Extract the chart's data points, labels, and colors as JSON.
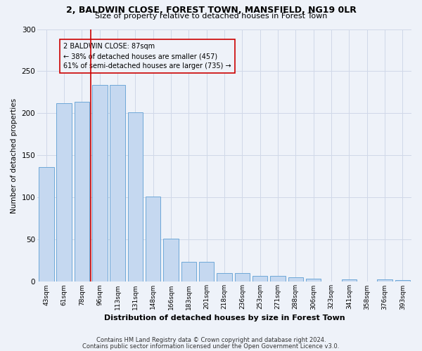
{
  "title1": "2, BALDWIN CLOSE, FOREST TOWN, MANSFIELD, NG19 0LR",
  "title2": "Size of property relative to detached houses in Forest Town",
  "xlabel": "Distribution of detached houses by size in Forest Town",
  "ylabel": "Number of detached properties",
  "categories": [
    "43sqm",
    "61sqm",
    "78sqm",
    "96sqm",
    "113sqm",
    "131sqm",
    "148sqm",
    "166sqm",
    "183sqm",
    "201sqm",
    "218sqm",
    "236sqm",
    "253sqm",
    "271sqm",
    "288sqm",
    "306sqm",
    "323sqm",
    "341sqm",
    "358sqm",
    "376sqm",
    "393sqm"
  ],
  "values": [
    136,
    212,
    214,
    234,
    234,
    201,
    101,
    51,
    24,
    24,
    10,
    10,
    7,
    7,
    5,
    4,
    0,
    3,
    0,
    3,
    2
  ],
  "bar_color": "#c5d8f0",
  "bar_edge_color": "#6ea8d8",
  "grid_color": "#d0d8e8",
  "annotation_box_color": "#cc0000",
  "vline_color": "#cc0000",
  "vline_x": 2.5,
  "annotation_text_line1": "2 BALDWIN CLOSE: 87sqm",
  "annotation_text_line2": "← 38% of detached houses are smaller (457)",
  "annotation_text_line3": "61% of semi-detached houses are larger (735) →",
  "footer1": "Contains HM Land Registry data © Crown copyright and database right 2024.",
  "footer2": "Contains public sector information licensed under the Open Government Licence v3.0.",
  "ylim": [
    0,
    300
  ],
  "yticks": [
    0,
    50,
    100,
    150,
    200,
    250,
    300
  ],
  "background_color": "#eef2f9"
}
